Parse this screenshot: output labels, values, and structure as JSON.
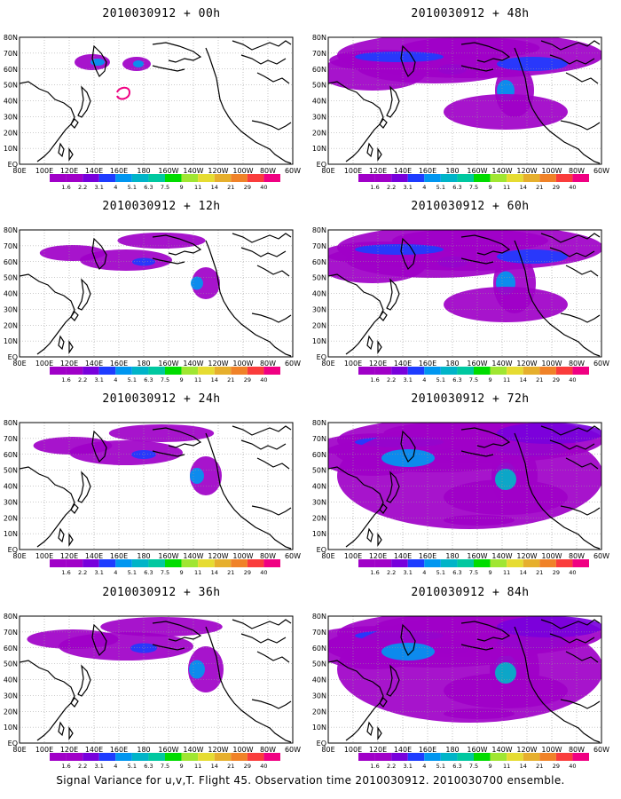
{
  "panels": [
    {
      "title": "2010030912 + 00h"
    },
    {
      "title": "2010030912 + 48h"
    },
    {
      "title": "2010030912 + 12h"
    },
    {
      "title": "2010030912 + 60h"
    },
    {
      "title": "2010030912 + 24h"
    },
    {
      "title": "2010030912 + 72h"
    },
    {
      "title": "2010030912 + 36h"
    },
    {
      "title": "2010030912 + 84h"
    }
  ],
  "lat_labels": [
    "80N",
    "70N",
    "60N",
    "50N",
    "40N",
    "30N",
    "20N",
    "10N",
    "EQ"
  ],
  "lon_labels": [
    "80E",
    "100E",
    "120E",
    "140E",
    "160E",
    "180",
    "160W",
    "140W",
    "120W",
    "100W",
    "80W",
    "60W"
  ],
  "colorbar": {
    "labels": [
      "1.6",
      "2.2",
      "3.1",
      "4",
      "5.1",
      "6.3",
      "7.5",
      "9",
      "11",
      "14",
      "21",
      "29",
      "40"
    ],
    "colors": [
      "#a000c8",
      "#7800dc",
      "#1e3cff",
      "#0096f0",
      "#00b4c8",
      "#00c8a0",
      "#00dc00",
      "#a0e632",
      "#e6dc32",
      "#e6af2d",
      "#f08228",
      "#fa3c3c",
      "#f00082"
    ]
  },
  "footer": "Signal Variance for u,v,T. Flight 45. Observation time 2010030912. 2010030700 ensemble."
}
